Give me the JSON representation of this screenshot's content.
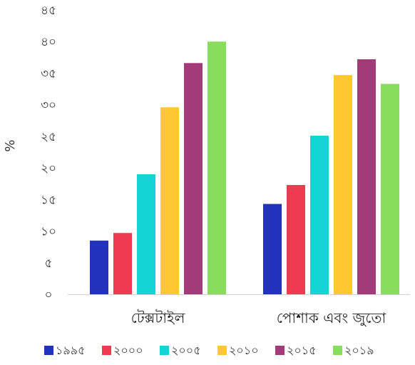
{
  "chart_data": {
    "type": "bar",
    "ylabel": "%",
    "ylim": [
      0,
      45
    ],
    "y_ticks": [
      "০",
      "৫",
      "১০",
      "১৫",
      "২০",
      "২৫",
      "৩০",
      "৩৫",
      "৪০",
      "৪৫"
    ],
    "categories": [
      "টেক্সটাইল",
      "পোশাক এবং জুতো"
    ],
    "series": [
      {
        "name": "১৯৯৫",
        "color": "#2233bb",
        "values": [
          8.5,
          14.3
        ]
      },
      {
        "name": "২০০০",
        "color": "#f03a4f",
        "values": [
          9.7,
          17.3
        ]
      },
      {
        "name": "২০০৫",
        "color": "#14d4d4",
        "values": [
          19.0,
          25.1
        ]
      },
      {
        "name": "২০১০",
        "color": "#ffc832",
        "values": [
          29.6,
          34.7
        ]
      },
      {
        "name": "২০১৫",
        "color": "#a33b78",
        "values": [
          36.6,
          37.2
        ]
      },
      {
        "name": "২০১৯",
        "color": "#88de5c",
        "values": [
          40.0,
          33.3
        ]
      }
    ],
    "grid": false,
    "legend_position": "bottom"
  }
}
